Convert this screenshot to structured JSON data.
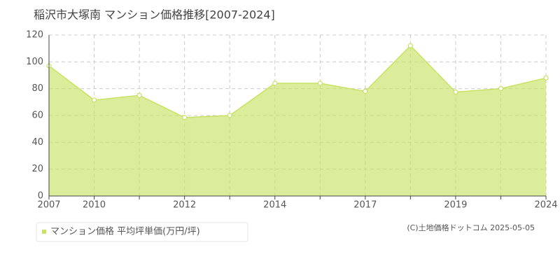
{
  "chart_data": {
    "type": "area",
    "title": "稲沢市大塚南 マンション価格推移[2007-2024]",
    "categories": [
      "2007",
      "2010",
      null,
      "2012",
      null,
      "2014",
      null,
      "2017",
      null,
      "2019",
      null,
      "2024"
    ],
    "series": [
      {
        "name": "マンション価格 平均坪単価(万円/坪)",
        "color": "#c8e264",
        "values": [
          97,
          71.5,
          75,
          58.5,
          60,
          84,
          84,
          78,
          112,
          77.5,
          80,
          88
        ]
      }
    ],
    "ylim": [
      0,
      120
    ],
    "yticks": [
      0,
      20,
      40,
      60,
      80,
      100,
      120
    ],
    "grid": true,
    "copyright": "(C)土地価格ドットコム 2025-05-05"
  }
}
